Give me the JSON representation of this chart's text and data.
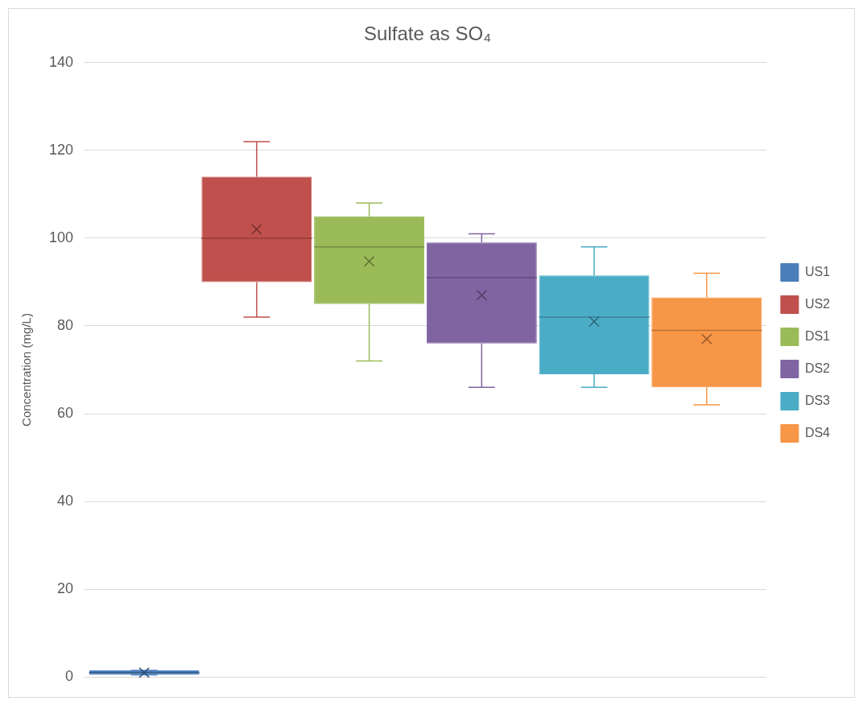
{
  "chart_data": {
    "type": "box",
    "title": "Sulfate as SO₄",
    "ylabel": "Concentration (mg/L)",
    "categories": [
      null
    ],
    "ylim": [
      0,
      140
    ],
    "yticks": [
      0,
      20,
      40,
      60,
      80,
      100,
      120,
      140
    ],
    "grid": "y",
    "legend": "right",
    "tick_labels": "y",
    "series": [
      {
        "name": "US1",
        "color": "#4a7ebb",
        "boxes": [
          {
            "low": 0.5,
            "q1": 0.5,
            "median": 1,
            "q3": 1.5,
            "high": 1.5,
            "mean": 1
          }
        ]
      },
      {
        "name": "US2",
        "color": "#c0504d",
        "boxes": [
          {
            "low": 82,
            "q1": 90,
            "median": 100,
            "q3": 114,
            "high": 122,
            "mean": 102
          }
        ]
      },
      {
        "name": "DS1",
        "color": "#9bbb59",
        "boxes": [
          {
            "low": 72,
            "q1": 85,
            "median": 98,
            "q3": 105,
            "high": 108,
            "mean": 94.7
          }
        ]
      },
      {
        "name": "DS2",
        "color": "#8064a2",
        "boxes": [
          {
            "low": 66,
            "q1": 76,
            "median": 91,
            "q3": 99,
            "high": 101,
            "mean": 87
          }
        ]
      },
      {
        "name": "DS3",
        "color": "#4bacc6",
        "boxes": [
          {
            "low": 66,
            "q1": 69,
            "median": 82,
            "q3": 91.5,
            "high": 98,
            "mean": 81
          }
        ]
      },
      {
        "name": "DS4",
        "color": "#f79646",
        "boxes": [
          {
            "low": 62,
            "q1": 66,
            "median": 79,
            "q3": 86.5,
            "high": 92,
            "mean": 77
          }
        ]
      }
    ]
  }
}
